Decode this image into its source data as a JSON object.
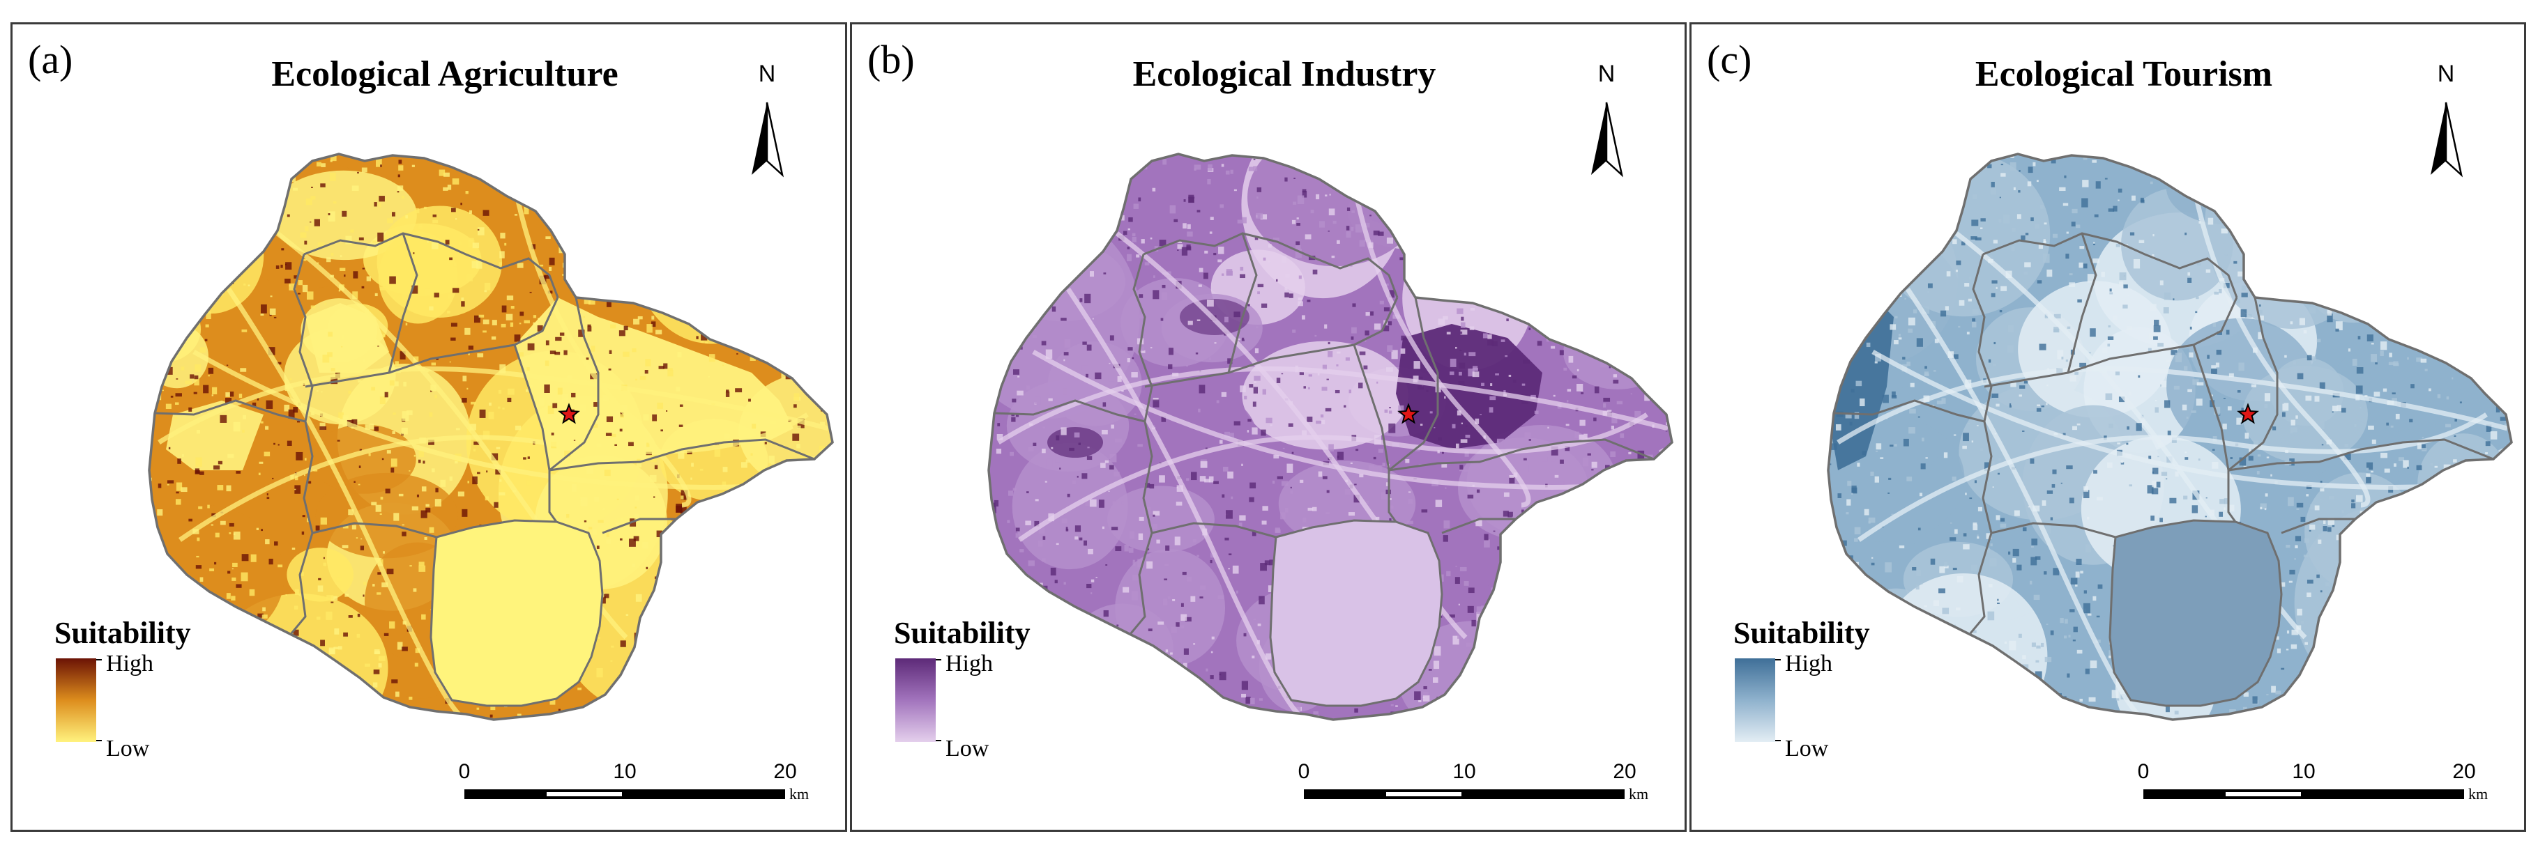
{
  "panels": [
    {
      "letter": "(a)",
      "title": "Ecological Agriculture",
      "theme": "agriculture",
      "colors": {
        "high": "#6b1305",
        "mid": "#dd8d1d",
        "low": "#fff27e",
        "lake": "#fff47c",
        "alt": "#ffe964"
      }
    },
    {
      "letter": "(b)",
      "title": "Ecological Industry",
      "theme": "industry",
      "colors": {
        "high": "#5d2a78",
        "mid": "#a274bd",
        "low": "#e4cfec",
        "lake": "#d9c2e7",
        "alt": "#b58fcc"
      }
    },
    {
      "letter": "(c)",
      "title": "Ecological Tourism",
      "theme": "tourism",
      "colors": {
        "high": "#3f6f98",
        "mid": "#8fb2cd",
        "low": "#e3edf4",
        "lake": "#7d9eba",
        "alt": "#aac4d8"
      }
    }
  ],
  "legend": {
    "title": "Suitability",
    "high": "High",
    "low": "Low"
  },
  "scalebar": {
    "ticks": [
      "0",
      "10",
      "20"
    ],
    "unit": "km"
  },
  "north": {
    "label": "N"
  }
}
